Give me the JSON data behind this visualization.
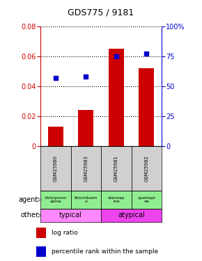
{
  "title": "GDS775 / 9181",
  "samples": [
    "GSM25980",
    "GSM25983",
    "GSM25981",
    "GSM25982"
  ],
  "log_ratio": [
    0.013,
    0.024,
    0.065,
    0.052
  ],
  "percentile_rank": [
    57,
    58,
    75,
    77
  ],
  "ylim_left": [
    0,
    0.08
  ],
  "ylim_right": [
    0,
    100
  ],
  "yticks_left": [
    0,
    0.02,
    0.04,
    0.06,
    0.08
  ],
  "yticks_right": [
    0,
    25,
    50,
    75,
    100
  ],
  "bar_color": "#cc0000",
  "dot_color": "#0000cc",
  "agent_labels": [
    "chlorprom\nazine",
    "thioridazin\ne",
    "olanzap\nine",
    "quetiapi\nne"
  ],
  "agent_bg": "#90ee90",
  "typical_color": "#ff88ff",
  "atypical_color": "#ee44ee",
  "sample_bg": "#d0d0d0",
  "typical_label": "typical",
  "atypical_label": "atypical",
  "legend_bar": "log ratio",
  "legend_dot": "percentile rank within the sample",
  "agent_row_label": "agent",
  "other_row_label": "other",
  "background_color": "#ffffff",
  "left_axis_color": "#cc0000",
  "right_axis_color": "#0000cc"
}
